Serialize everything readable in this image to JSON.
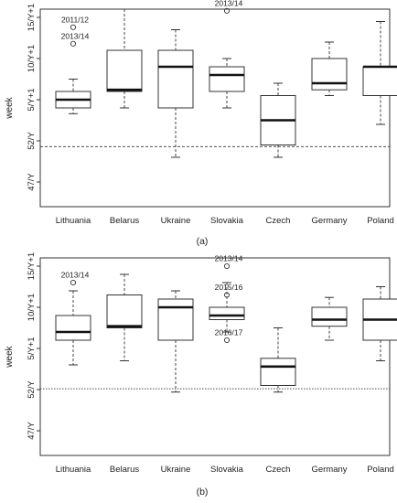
{
  "chart_data": [
    {
      "type": "box",
      "panel_label": "(a)",
      "ylabel": "week",
      "categories": [
        "Lithuania",
        "Belarus",
        "Ukraine",
        "Slovakia",
        "Czech",
        "Germany",
        "Poland"
      ],
      "y_ticks": [
        {
          "value": 47,
          "label": "47/Y"
        },
        {
          "value": 52,
          "label": "52/Y"
        },
        {
          "value": 57,
          "label": "5/Y+1"
        },
        {
          "value": 62,
          "label": "10/Y+1"
        },
        {
          "value": 67,
          "label": "15/Y+1"
        }
      ],
      "ylim": [
        44,
        68
      ],
      "reference_line": 51.3,
      "boxes": [
        {
          "min": 55.3,
          "q1": 56.0,
          "median": 57.0,
          "q3": 58.0,
          "max": 59.5
        },
        {
          "min": 56.0,
          "q1": 58.0,
          "median": 58.2,
          "q3": 63.0,
          "max": 68.0
        },
        {
          "min": 50.0,
          "q1": 56.0,
          "median": 61.0,
          "q3": 63.0,
          "max": 65.5
        },
        {
          "min": 56.0,
          "q1": 58.0,
          "median": 60.0,
          "q3": 61.0,
          "max": 62.0
        },
        {
          "min": 50.0,
          "q1": 51.5,
          "median": 54.5,
          "q3": 57.5,
          "max": 59.0
        },
        {
          "min": 57.5,
          "q1": 58.2,
          "median": 59.0,
          "q3": 62.0,
          "max": 64.0
        },
        {
          "min": 54.0,
          "q1": 57.5,
          "median": 61.0,
          "q3": 61.0,
          "max": 66.5
        }
      ],
      "outliers": [
        {
          "category": "Lithuania",
          "value": 65.8,
          "label": "2011/12"
        },
        {
          "category": "Lithuania",
          "value": 63.8,
          "label": "2013/14"
        },
        {
          "category": "Slovakia",
          "value": 67.8,
          "label": "2013/14"
        }
      ]
    },
    {
      "type": "box",
      "panel_label": "(b)",
      "ylabel": "week",
      "categories": [
        "Lithuania",
        "Belarus",
        "Ukraine",
        "Slovakia",
        "Czech",
        "Germany",
        "Poland"
      ],
      "y_ticks": [
        {
          "value": 47,
          "label": "47/Y"
        },
        {
          "value": 52,
          "label": "52/Y"
        },
        {
          "value": 57,
          "label": "5/Y+1"
        },
        {
          "value": 62,
          "label": "10/Y+1"
        },
        {
          "value": 67,
          "label": "15/Y+1"
        }
      ],
      "ylim": [
        44,
        68
      ],
      "reference_line": 52.1,
      "boxes": [
        {
          "min": 55.0,
          "q1": 58.0,
          "median": 59.0,
          "q3": 61.0,
          "max": 64.0
        },
        {
          "min": 55.5,
          "q1": 59.5,
          "median": 59.7,
          "q3": 63.5,
          "max": 66.0
        },
        {
          "min": 51.7,
          "q1": 58.0,
          "median": 62.0,
          "q3": 63.0,
          "max": 64.0
        },
        {
          "min": 59.0,
          "q1": 60.5,
          "median": 61.0,
          "q3": 62.0,
          "max": 65.0
        },
        {
          "min": 51.7,
          "q1": 52.5,
          "median": 54.8,
          "q3": 55.8,
          "max": 59.5
        },
        {
          "min": 58.0,
          "q1": 59.7,
          "median": 60.5,
          "q3": 62.0,
          "max": 63.2
        },
        {
          "min": 55.5,
          "q1": 58.0,
          "median": 60.5,
          "q3": 63.0,
          "max": 64.5
        }
      ],
      "outliers": [
        {
          "category": "Lithuania",
          "value": 65.0,
          "label": "2013/14"
        },
        {
          "category": "Slovakia",
          "value": 67.0,
          "label": "2013/14"
        },
        {
          "category": "Slovakia",
          "value": 63.5,
          "label": "2015/16"
        },
        {
          "category": "Slovakia",
          "value": 58.0,
          "label": "2016/17"
        }
      ]
    }
  ]
}
